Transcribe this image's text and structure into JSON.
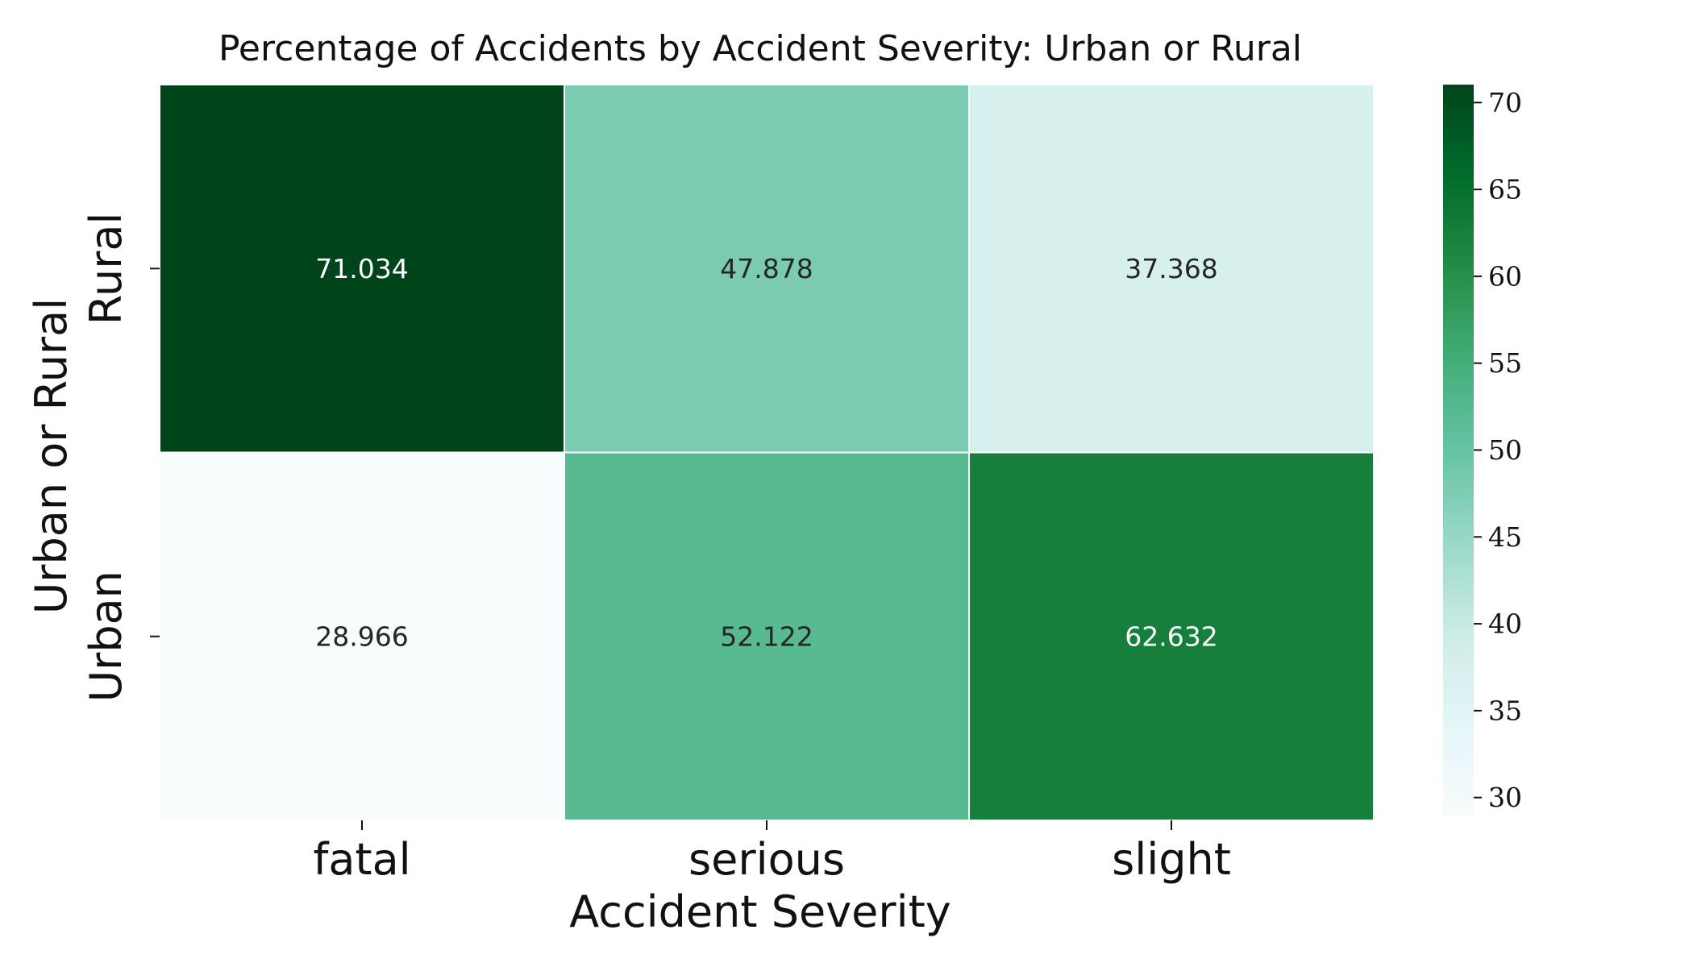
{
  "chart_data": {
    "type": "heatmap",
    "title": "Percentage of Accidents by Accident Severity: Urban or Rural",
    "xlabel": "Accident Severity",
    "ylabel": "Urban or Rural",
    "x_categories": [
      "fatal",
      "serious",
      "slight"
    ],
    "y_categories": [
      "Rural",
      "Urban"
    ],
    "values": [
      [
        71.034,
        47.878,
        37.368
      ],
      [
        28.966,
        52.122,
        62.632
      ]
    ],
    "value_labels": [
      [
        "71.034",
        "47.878",
        "37.368"
      ],
      [
        "28.966",
        "52.122",
        "62.632"
      ]
    ],
    "colorbar": {
      "min": 28.966,
      "max": 71.034,
      "ticks": [
        30,
        35,
        40,
        45,
        50,
        55,
        60,
        65,
        70
      ],
      "colormap": [
        "#f7fcfd",
        "#e5f5f9",
        "#ccece6",
        "#99d8c9",
        "#66c2a4",
        "#41ae76",
        "#238b45",
        "#006d2c",
        "#00441b"
      ]
    },
    "grid": false
  }
}
